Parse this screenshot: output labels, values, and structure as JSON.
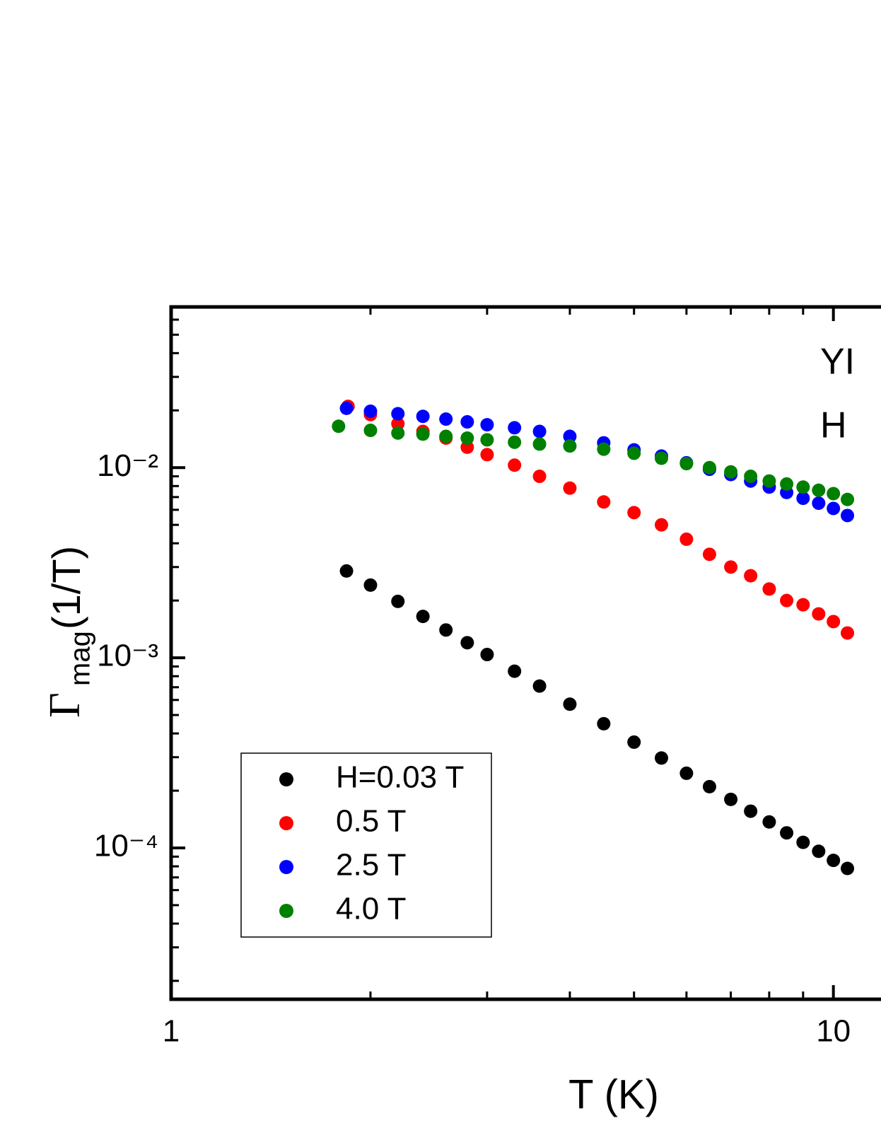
{
  "chart_data": {
    "type": "scatter",
    "x_log": true,
    "y_log": true,
    "x_label": "T (K)",
    "y_label": {
      "symbol": "Γ",
      "subscript": "mag",
      "unit": "(1/T)"
    },
    "annotations": [
      "YI",
      "H"
    ],
    "xlim": [
      1,
      11.8
    ],
    "ylim": [
      1.6e-05,
      0.07
    ],
    "xticks": [
      1,
      10
    ],
    "yticks": [
      {
        "value": 0.0001,
        "label": "10⁻⁴"
      },
      {
        "value": 0.001,
        "label": "10⁻³"
      },
      {
        "value": 0.01,
        "label": "10⁻²"
      }
    ],
    "legend": "lower left",
    "series": [
      {
        "name": "H=0.03 T",
        "color": "#000000",
        "x": [
          1.84,
          2.0,
          2.2,
          2.4,
          2.6,
          2.8,
          3.0,
          3.3,
          3.6,
          4.0,
          4.5,
          5.0,
          5.5,
          6.0,
          6.5,
          7.0,
          7.5,
          8.0,
          8.5,
          9.0,
          9.5,
          10,
          10.5
        ],
        "values": [
          0.00286,
          0.00241,
          0.00198,
          0.00165,
          0.0014,
          0.0012,
          0.00104,
          0.00085,
          0.00071,
          0.00057,
          0.00045,
          0.00036,
          0.000297,
          0.000247,
          0.00021,
          0.00018,
          0.000156,
          0.000137,
          0.00012,
          0.000107,
          9.6e-05,
          8.6e-05,
          7.8e-05
        ]
      },
      {
        "name": "0.5 T",
        "color": "#ff0000",
        "x": [
          1.85,
          2.0,
          2.2,
          2.4,
          2.6,
          2.8,
          3.0,
          3.3,
          3.6,
          4.0,
          4.5,
          5.0,
          5.5,
          6.0,
          6.5,
          7.0,
          7.5,
          8.0,
          8.5,
          9.0,
          9.5,
          10,
          10.5
        ],
        "values": [
          0.021,
          0.019,
          0.017,
          0.0155,
          0.0143,
          0.0128,
          0.0117,
          0.0103,
          0.009,
          0.0078,
          0.0066,
          0.0058,
          0.005,
          0.0042,
          0.0035,
          0.003,
          0.0027,
          0.0023,
          0.002,
          0.0019,
          0.0017,
          0.00155,
          0.00135
        ]
      },
      {
        "name": "2.5 T",
        "color": "#0000ff",
        "x": [
          1.84,
          2.0,
          2.2,
          2.4,
          2.6,
          2.8,
          3.0,
          3.3,
          3.6,
          4.0,
          4.5,
          5.0,
          5.5,
          6.0,
          6.5,
          7.0,
          7.5,
          8.0,
          8.5,
          9.0,
          9.5,
          10,
          10.5
        ],
        "values": [
          0.0205,
          0.0198,
          0.0192,
          0.0186,
          0.018,
          0.0174,
          0.0168,
          0.0162,
          0.0155,
          0.0146,
          0.0135,
          0.0124,
          0.0115,
          0.0106,
          0.0098,
          0.0092,
          0.0085,
          0.0079,
          0.0074,
          0.0069,
          0.0065,
          0.0061,
          0.0056
        ]
      },
      {
        "name": "4.0 T",
        "color": "#008000",
        "x": [
          1.79,
          2.0,
          2.2,
          2.4,
          2.6,
          2.8,
          3.0,
          3.3,
          3.6,
          4.0,
          4.5,
          5.0,
          5.5,
          6.0,
          6.5,
          7.0,
          7.5,
          8.0,
          8.5,
          9.0,
          9.5,
          10,
          10.5
        ],
        "values": [
          0.0165,
          0.0157,
          0.0152,
          0.015,
          0.0146,
          0.0143,
          0.014,
          0.0136,
          0.0133,
          0.013,
          0.0125,
          0.0119,
          0.0112,
          0.0105,
          0.01,
          0.0095,
          0.009,
          0.0085,
          0.0082,
          0.0079,
          0.0076,
          0.0073,
          0.0068
        ]
      }
    ]
  }
}
